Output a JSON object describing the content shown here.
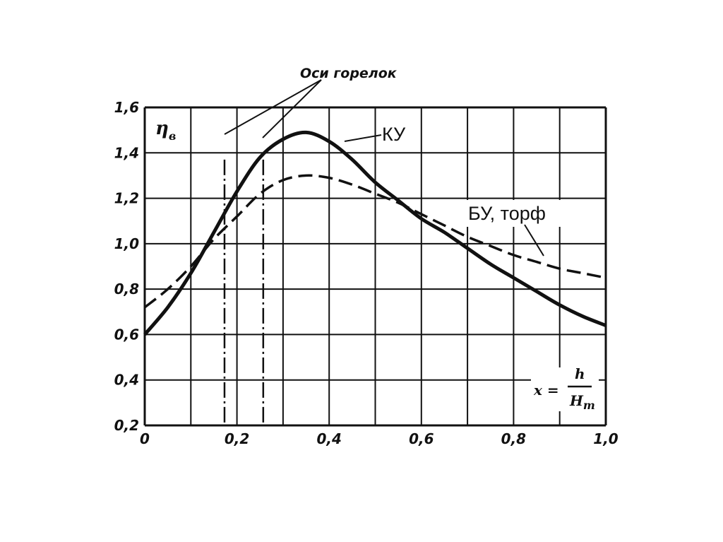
{
  "chart_data": {
    "type": "line",
    "xlim": [
      0,
      1.0
    ],
    "ylim": [
      0.2,
      1.6
    ],
    "grid": true,
    "xticks": [
      "0",
      "0,2",
      "0,4",
      "0,6",
      "0,8",
      "1,0"
    ],
    "yticks": [
      "0,2",
      "0,4",
      "0,6",
      "0,8",
      "1,0",
      "1,2",
      "1,4",
      "1,6"
    ],
    "ylabel": {
      "main": "η",
      "sub": "в"
    },
    "xlabel": {
      "lhs": "x =",
      "num": "h",
      "den": "H",
      "den_sub": "т"
    },
    "annotations": {
      "burner_axes": "Оси горелок",
      "series_a": "КУ",
      "series_b": "БУ, торф"
    },
    "burner_axes_x": [
      0.173,
      0.257
    ],
    "series": [
      {
        "name": "КУ",
        "style": "solid",
        "x": [
          0,
          0.05,
          0.1,
          0.15,
          0.2,
          0.25,
          0.3,
          0.35,
          0.4,
          0.45,
          0.5,
          0.55,
          0.6,
          0.65,
          0.7,
          0.75,
          0.8,
          0.85,
          0.9,
          0.95,
          1.0
        ],
        "y": [
          0.6,
          0.72,
          0.87,
          1.05,
          1.23,
          1.38,
          1.46,
          1.49,
          1.45,
          1.37,
          1.27,
          1.19,
          1.11,
          1.05,
          0.98,
          0.91,
          0.85,
          0.79,
          0.73,
          0.68,
          0.64
        ]
      },
      {
        "name": "БУ, торф",
        "style": "dashed",
        "x": [
          0,
          0.05,
          0.1,
          0.15,
          0.2,
          0.25,
          0.3,
          0.35,
          0.4,
          0.45,
          0.5,
          0.55,
          0.6,
          0.65,
          0.7,
          0.75,
          0.8,
          0.85,
          0.9,
          0.95,
          1.0
        ],
        "y": [
          0.72,
          0.8,
          0.9,
          1.02,
          1.12,
          1.22,
          1.28,
          1.3,
          1.29,
          1.26,
          1.22,
          1.18,
          1.13,
          1.08,
          1.03,
          0.99,
          0.95,
          0.92,
          0.89,
          0.87,
          0.85
        ]
      }
    ]
  }
}
